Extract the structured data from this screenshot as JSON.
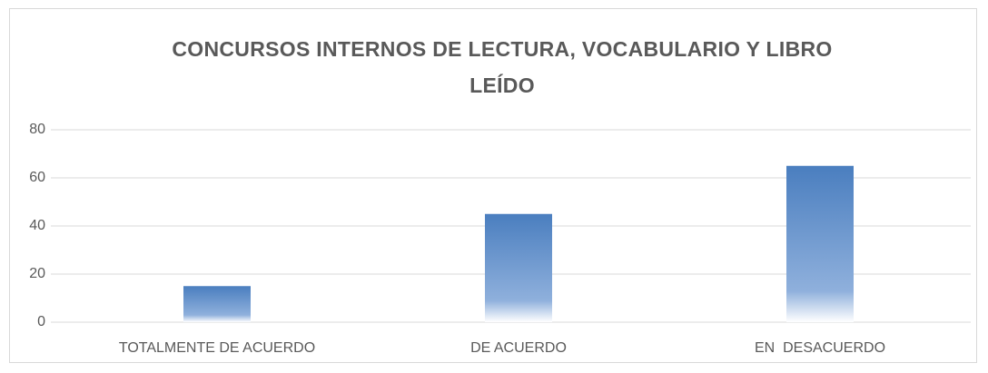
{
  "chart_data": {
    "type": "bar",
    "title": "CONCURSOS INTERNOS DE LECTURA, VOCABULARIO Y LIBRO LEÍDO",
    "categories": [
      "TOTALMENTE DE ACUERDO",
      "DE ACUERDO",
      "EN  DESACUERDO"
    ],
    "values": [
      15,
      45,
      65
    ],
    "color": "#4a7ebf",
    "ylim": [
      0,
      80
    ],
    "yticks": [
      0,
      20,
      40,
      60,
      80
    ],
    "grid": true
  }
}
